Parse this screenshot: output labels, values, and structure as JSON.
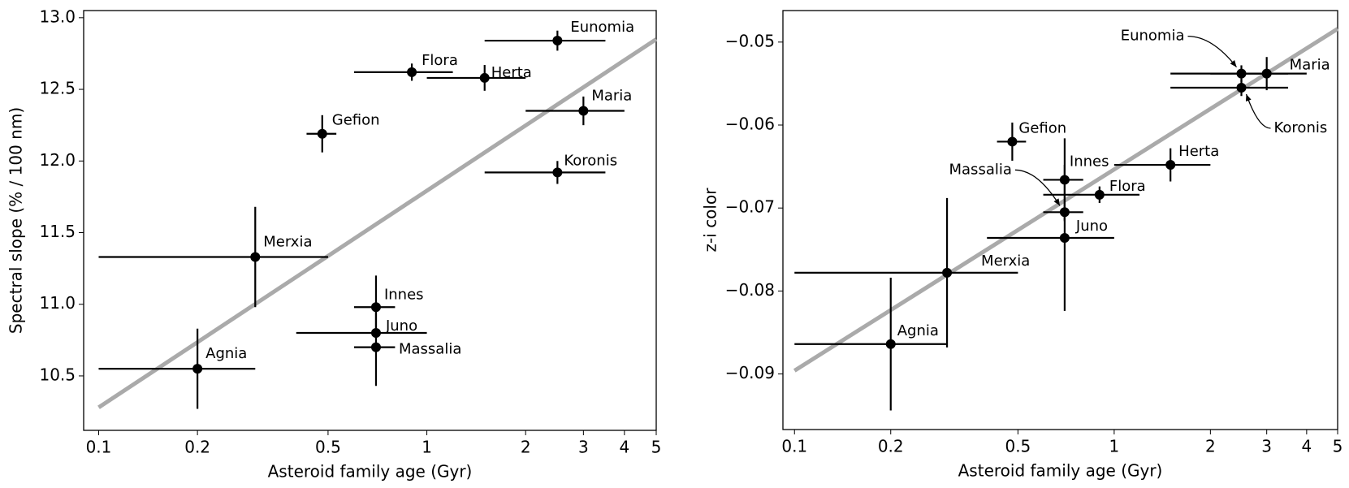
{
  "chart_data": [
    {
      "type": "scatter",
      "xlabel": "Asteroid family age (Gyr)",
      "ylabel": "Spectral slope (% / 100 nm)",
      "log_x": true,
      "color": "#000000",
      "labels": [
        "Eunomia",
        "Flora",
        "Herta",
        "Maria",
        "Gefion",
        "Koronis",
        "Merxia",
        "Innes",
        "Juno",
        "Massalia",
        "Agnia"
      ],
      "x": [
        2.5,
        0.9,
        1.5,
        3.0,
        0.48,
        2.5,
        0.3,
        0.7,
        0.7,
        0.7,
        0.2
      ],
      "values": [
        12.84,
        12.62,
        12.58,
        12.35,
        12.19,
        11.92,
        11.33,
        10.98,
        10.8,
        10.7,
        10.55
      ],
      "yerr": [
        0.07,
        0.06,
        0.09,
        0.1,
        0.13,
        0.08,
        0.35,
        0.22,
        0,
        0.27,
        0.28
      ],
      "x_min": [
        1.5,
        0.6,
        1.0,
        2.0,
        0.43,
        1.5,
        0.1,
        0.6,
        0.4,
        0.6,
        0.1
      ],
      "x_max": [
        3.5,
        1.2,
        2.0,
        4.0,
        0.53,
        3.5,
        0.5,
        0.8,
        1.0,
        0.8,
        0.3
      ],
      "fit": {
        "x": [
          0.1,
          5
        ],
        "y": [
          10.28,
          12.85
        ],
        "color": "#aaaaaa"
      },
      "xlim": [
        0.09,
        5
      ],
      "ylim": [
        10.12,
        13.05
      ],
      "xticks": [
        0.1,
        0.2,
        0.5,
        1,
        2,
        3,
        4,
        5
      ],
      "yticks": [
        10.5,
        {
          "value": 11,
          "label": "11.0"
        },
        11.5,
        {
          "value": 12,
          "label": "12.0"
        },
        12.5,
        {
          "value": 13,
          "label": "13.0"
        }
      ]
    },
    {
      "type": "scatter",
      "xlabel": "Asteroid family age (Gyr)",
      "ylabel": "z-i color",
      "log_x": true,
      "color": "#000000",
      "labels": [
        "Eunomia",
        "Maria",
        "Koronis",
        "Gefion",
        "Innes",
        "Herta",
        "Flora",
        "Massalia",
        "Juno",
        "Merxia",
        "Agnia"
      ],
      "x": [
        2.5,
        3.0,
        2.5,
        0.48,
        0.7,
        1.5,
        0.9,
        0.7,
        0.7,
        0.3,
        0.2
      ],
      "values": [
        -0.0538,
        -0.0538,
        -0.0555,
        -0.062,
        -0.0666,
        -0.0648,
        -0.0684,
        -0.0705,
        -0.0736,
        -0.0778,
        -0.0864
      ],
      "yerr": [
        0.001,
        0.002,
        0.001,
        0.0023,
        0.005,
        0.002,
        0.001,
        0.001,
        0.0088,
        0.009,
        0.008
      ],
      "x_min": [
        1.5,
        2.0,
        1.5,
        0.43,
        0.6,
        1.0,
        0.6,
        0.6,
        0.4,
        0.1,
        0.1
      ],
      "x_max": [
        3.5,
        4.0,
        3.5,
        0.53,
        0.8,
        2.0,
        1.2,
        0.8,
        1.0,
        0.5,
        0.3
      ],
      "fit": {
        "x": [
          0.1,
          5
        ],
        "y": [
          -0.0896,
          -0.0484
        ],
        "color": "#aaaaaa"
      },
      "xlim": [
        0.092,
        5
      ],
      "ylim": [
        -0.0967,
        -0.0462
      ],
      "xticks": [
        0.1,
        0.2,
        0.5,
        1,
        2,
        3,
        4,
        5
      ],
      "yticks": [
        {
          "value": -0.09,
          "label": "−0.09"
        },
        {
          "value": -0.08,
          "label": "−0.08"
        },
        {
          "value": -0.07,
          "label": "−0.07"
        },
        {
          "value": -0.06,
          "label": "−0.06"
        },
        {
          "value": -0.05,
          "label": "−0.05"
        }
      ]
    }
  ]
}
